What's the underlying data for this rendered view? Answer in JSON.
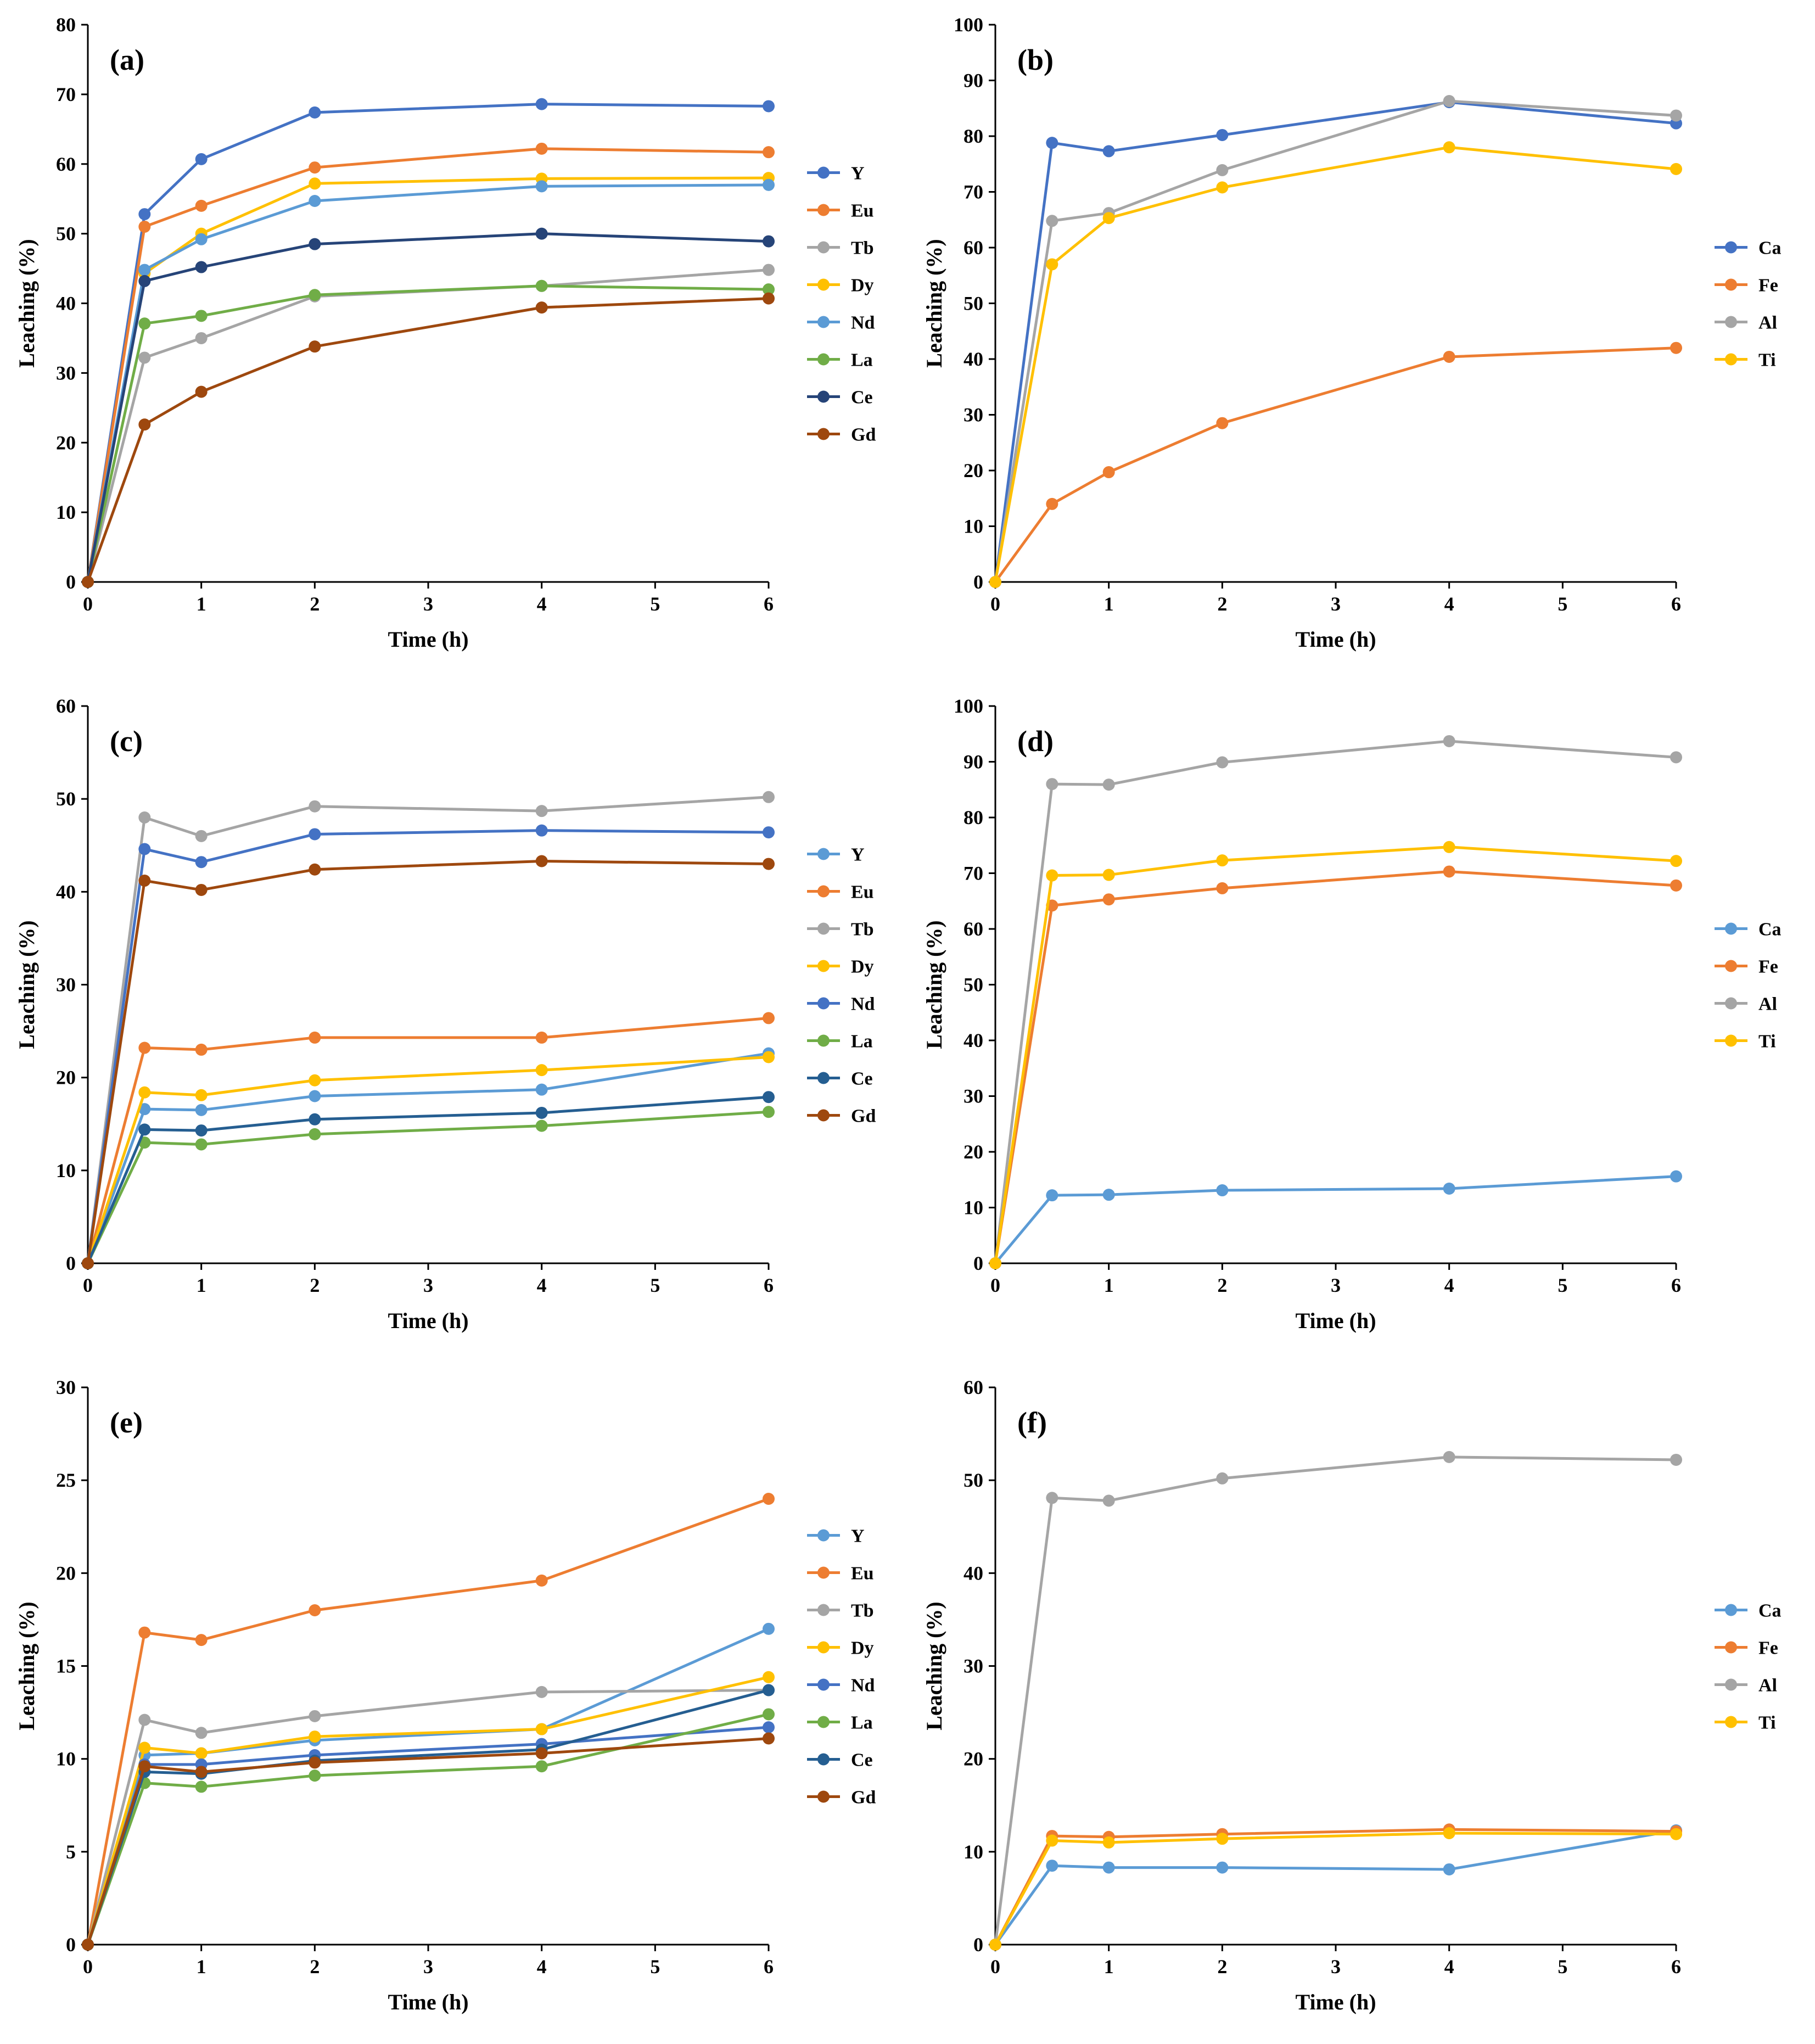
{
  "figure": {
    "panels": [
      "a",
      "b",
      "c",
      "d",
      "e",
      "f"
    ]
  },
  "chart_data": [
    {
      "panel": "a",
      "title": "(a)",
      "type": "line",
      "xlabel": "Time (h)",
      "ylabel": "Leaching (%)",
      "xlim": [
        0,
        6
      ],
      "ylim": [
        0,
        80
      ],
      "xticks": [
        0,
        1,
        2,
        3,
        4,
        5,
        6
      ],
      "yticks": [
        0,
        10,
        20,
        30,
        40,
        50,
        60,
        70,
        80
      ],
      "grid": false,
      "legend_position": "right",
      "x": [
        0,
        0.5,
        1,
        2,
        4,
        6
      ],
      "series": [
        {
          "name": "Y",
          "color": "#4472C4",
          "values": [
            0,
            52.8,
            60.7,
            67.4,
            68.6,
            68.3
          ]
        },
        {
          "name": "Eu",
          "color": "#ED7D31",
          "values": [
            0,
            51.0,
            54.0,
            59.5,
            62.2,
            61.7
          ]
        },
        {
          "name": "Tb",
          "color": "#A5A5A5",
          "values": [
            0,
            32.2,
            35.0,
            41.0,
            42.5,
            44.8
          ]
        },
        {
          "name": "Dy",
          "color": "#FFC000",
          "values": [
            0,
            44.3,
            50.0,
            57.2,
            57.9,
            58.0
          ]
        },
        {
          "name": "Nd",
          "color": "#5B9BD5",
          "values": [
            0,
            44.8,
            49.2,
            54.7,
            56.8,
            57.0
          ]
        },
        {
          "name": "La",
          "color": "#70AD47",
          "values": [
            0,
            37.1,
            38.2,
            41.2,
            42.5,
            42.0
          ]
        },
        {
          "name": "Ce",
          "color": "#264478",
          "values": [
            0,
            43.2,
            45.2,
            48.5,
            50.0,
            48.9
          ]
        },
        {
          "name": "Gd",
          "color": "#9E480E",
          "values": [
            0,
            22.6,
            27.3,
            33.8,
            39.4,
            40.7
          ]
        }
      ]
    },
    {
      "panel": "b",
      "title": "(b)",
      "type": "line",
      "xlabel": "Time (h)",
      "ylabel": "Leaching (%)",
      "xlim": [
        0,
        6
      ],
      "ylim": [
        0,
        100
      ],
      "xticks": [
        0,
        1,
        2,
        3,
        4,
        5,
        6
      ],
      "yticks": [
        0,
        10,
        20,
        30,
        40,
        50,
        60,
        70,
        80,
        90,
        100
      ],
      "grid": false,
      "legend_position": "right",
      "x": [
        0,
        0.5,
        1,
        2,
        4,
        6
      ],
      "series": [
        {
          "name": "Ca",
          "color": "#4472C4",
          "values": [
            0,
            78.8,
            77.3,
            80.2,
            86.1,
            82.3
          ]
        },
        {
          "name": "Fe",
          "color": "#ED7D31",
          "values": [
            0,
            14.0,
            19.7,
            28.5,
            40.4,
            42.0
          ]
        },
        {
          "name": "Al",
          "color": "#A5A5A5",
          "values": [
            0,
            64.8,
            66.2,
            73.9,
            86.3,
            83.7
          ]
        },
        {
          "name": "Ti",
          "color": "#FFC000",
          "values": [
            0,
            57.0,
            65.3,
            70.8,
            78.0,
            74.1
          ]
        }
      ]
    },
    {
      "panel": "c",
      "title": "(c)",
      "type": "line",
      "xlabel": "Time (h)",
      "ylabel": "Leaching (%)",
      "xlim": [
        0,
        6
      ],
      "ylim": [
        0,
        60
      ],
      "xticks": [
        0,
        1,
        2,
        3,
        4,
        5,
        6
      ],
      "yticks": [
        0,
        10,
        20,
        30,
        40,
        50,
        60
      ],
      "grid": false,
      "legend_position": "right",
      "x": [
        0,
        0.5,
        1,
        2,
        4,
        6
      ],
      "series": [
        {
          "name": "Y",
          "color": "#5B9BD5",
          "values": [
            0,
            16.6,
            16.5,
            18.0,
            18.7,
            22.6
          ]
        },
        {
          "name": "Eu",
          "color": "#ED7D31",
          "values": [
            0,
            23.2,
            23.0,
            24.3,
            24.3,
            26.4
          ]
        },
        {
          "name": "Tb",
          "color": "#A5A5A5",
          "values": [
            0,
            48.0,
            46.0,
            49.2,
            48.7,
            50.2
          ]
        },
        {
          "name": "Dy",
          "color": "#FFC000",
          "values": [
            0,
            18.4,
            18.1,
            19.7,
            20.8,
            22.2
          ]
        },
        {
          "name": "Nd",
          "color": "#4472C4",
          "values": [
            0,
            44.6,
            43.2,
            46.2,
            46.6,
            46.4
          ]
        },
        {
          "name": "La",
          "color": "#70AD47",
          "values": [
            0,
            13.0,
            12.8,
            13.9,
            14.8,
            16.3
          ]
        },
        {
          "name": "Ce",
          "color": "#255E91",
          "values": [
            0,
            14.4,
            14.3,
            15.5,
            16.2,
            17.9
          ]
        },
        {
          "name": "Gd",
          "color": "#9E480E",
          "values": [
            0,
            41.2,
            40.2,
            42.4,
            43.3,
            43.0
          ]
        }
      ]
    },
    {
      "panel": "d",
      "title": "(d)",
      "type": "line",
      "xlabel": "Time (h)",
      "ylabel": "Leaching (%)",
      "xlim": [
        0,
        6
      ],
      "ylim": [
        0,
        100
      ],
      "xticks": [
        0,
        1,
        2,
        3,
        4,
        5,
        6
      ],
      "yticks": [
        0,
        10,
        20,
        30,
        40,
        50,
        60,
        70,
        80,
        90,
        100
      ],
      "grid": false,
      "legend_position": "right",
      "x": [
        0,
        0.5,
        1,
        2,
        4,
        6
      ],
      "series": [
        {
          "name": "Ca",
          "color": "#5B9BD5",
          "values": [
            0,
            12.2,
            12.3,
            13.1,
            13.4,
            15.6
          ]
        },
        {
          "name": "Fe",
          "color": "#ED7D31",
          "values": [
            0,
            64.2,
            65.3,
            67.3,
            70.3,
            67.8
          ]
        },
        {
          "name": "Al",
          "color": "#A5A5A5",
          "values": [
            0,
            86.0,
            85.9,
            89.9,
            93.7,
            90.8
          ]
        },
        {
          "name": "Ti",
          "color": "#FFC000",
          "values": [
            0,
            69.6,
            69.7,
            72.3,
            74.7,
            72.2
          ]
        }
      ]
    },
    {
      "panel": "e",
      "title": "(e)",
      "type": "line",
      "xlabel": "Time (h)",
      "ylabel": "Leaching (%)",
      "xlim": [
        0,
        6
      ],
      "ylim": [
        0,
        30
      ],
      "xticks": [
        0,
        1,
        2,
        3,
        4,
        5,
        6
      ],
      "yticks": [
        0,
        5,
        10,
        15,
        20,
        25,
        30
      ],
      "grid": false,
      "legend_position": "right",
      "x": [
        0,
        0.5,
        1,
        2,
        4,
        6
      ],
      "series": [
        {
          "name": "Y",
          "color": "#5B9BD5",
          "values": [
            0,
            10.2,
            10.3,
            11.0,
            11.6,
            17.0
          ]
        },
        {
          "name": "Eu",
          "color": "#ED7D31",
          "values": [
            0,
            16.8,
            16.4,
            18.0,
            19.6,
            24.0
          ]
        },
        {
          "name": "Tb",
          "color": "#A5A5A5",
          "values": [
            0,
            12.1,
            11.4,
            12.3,
            13.6,
            13.7
          ]
        },
        {
          "name": "Dy",
          "color": "#FFC000",
          "values": [
            0,
            10.6,
            10.3,
            11.2,
            11.6,
            14.4
          ]
        },
        {
          "name": "Nd",
          "color": "#4472C4",
          "values": [
            0,
            9.7,
            9.7,
            10.2,
            10.8,
            11.7
          ]
        },
        {
          "name": "La",
          "color": "#70AD47",
          "values": [
            0,
            8.7,
            8.5,
            9.1,
            9.6,
            12.4
          ]
        },
        {
          "name": "Ce",
          "color": "#255E91",
          "values": [
            0,
            9.3,
            9.2,
            9.9,
            10.5,
            13.7
          ]
        },
        {
          "name": "Gd",
          "color": "#9E480E",
          "values": [
            0,
            9.6,
            9.3,
            9.8,
            10.3,
            11.1
          ]
        }
      ]
    },
    {
      "panel": "f",
      "title": "(f)",
      "type": "line",
      "xlabel": "Time (h)",
      "ylabel": "Leaching (%)",
      "xlim": [
        0,
        6
      ],
      "ylim": [
        0,
        60
      ],
      "xticks": [
        0,
        1,
        2,
        3,
        4,
        5,
        6
      ],
      "yticks": [
        0,
        10,
        20,
        30,
        40,
        50,
        60
      ],
      "grid": false,
      "legend_position": "right",
      "x": [
        0,
        0.5,
        1,
        2,
        4,
        6
      ],
      "series": [
        {
          "name": "Ca",
          "color": "#5B9BD5",
          "values": [
            0,
            8.5,
            8.3,
            8.3,
            8.1,
            12.3
          ]
        },
        {
          "name": "Fe",
          "color": "#ED7D31",
          "values": [
            0,
            11.7,
            11.6,
            11.9,
            12.4,
            12.2
          ]
        },
        {
          "name": "Al",
          "color": "#A5A5A5",
          "values": [
            0,
            48.1,
            47.8,
            50.2,
            52.5,
            52.2
          ]
        },
        {
          "name": "Ti",
          "color": "#FFC000",
          "values": [
            0,
            11.2,
            11.0,
            11.4,
            12.0,
            11.9
          ]
        }
      ]
    }
  ]
}
